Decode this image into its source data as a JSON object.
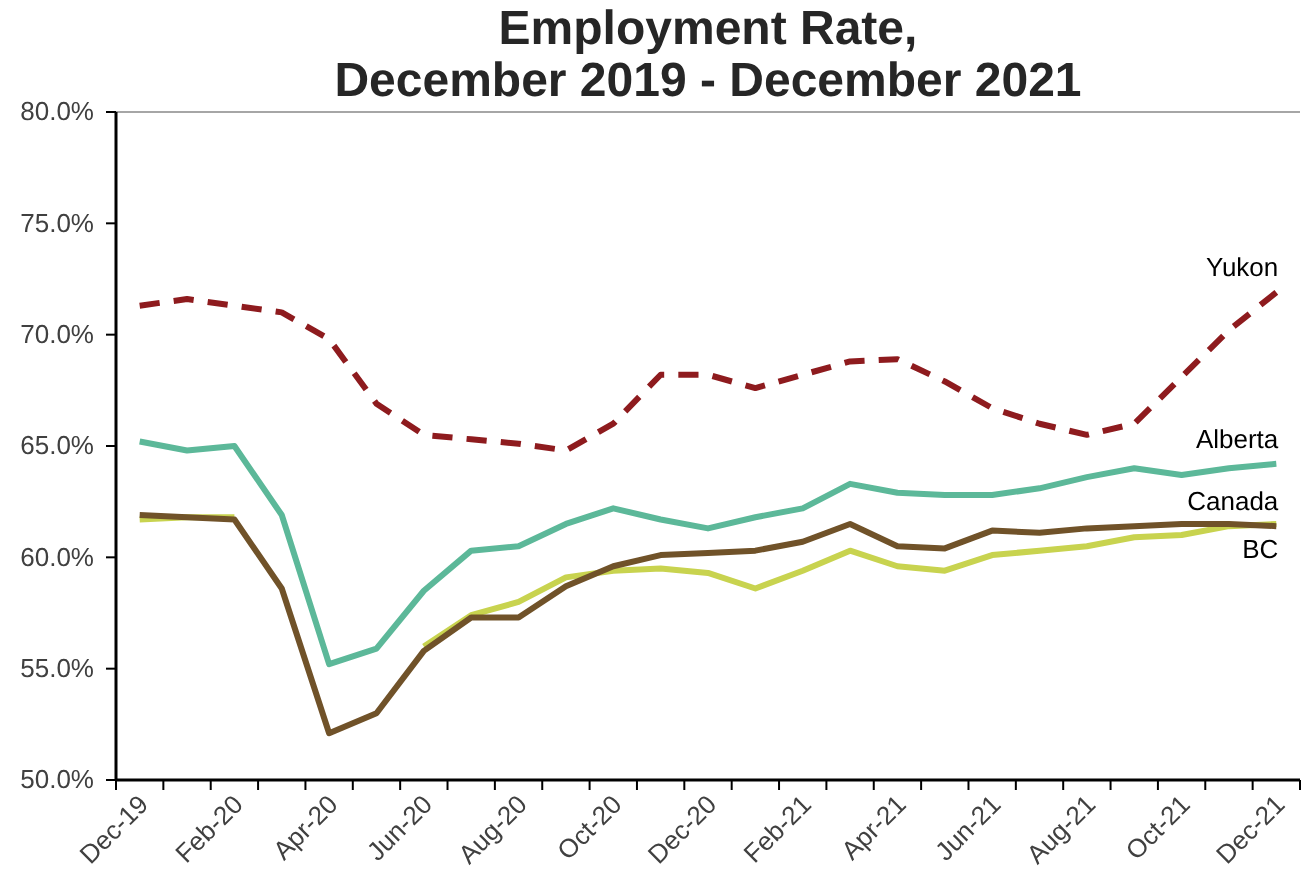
{
  "chart_data": {
    "type": "line",
    "title": "Employment Rate,\nDecember 2019 - December 2021",
    "categories": [
      "Dec-19",
      null,
      "Feb-20",
      null,
      "Apr-20",
      null,
      "Jun-20",
      null,
      "Aug-20",
      null,
      "Oct-20",
      null,
      "Dec-20",
      null,
      "Feb-21",
      null,
      "Apr-21",
      null,
      "Jun-21",
      null,
      "Aug-21",
      null,
      "Oct-21",
      null,
      "Dec-21"
    ],
    "series": [
      {
        "name": "Yukon",
        "color": "#8e1b1e",
        "line_style": "dashed",
        "values": [
          71.3,
          71.6,
          71.3,
          71.0,
          69.8,
          66.9,
          65.5,
          65.3,
          65.1,
          64.8,
          66.0,
          68.2,
          68.2,
          67.6,
          68.2,
          68.8,
          68.9,
          67.9,
          66.7,
          66.0,
          65.5,
          66.0,
          68.1,
          70.2,
          71.9
        ]
      },
      {
        "name": "Alberta",
        "color": "#5cb899",
        "line_style": "solid",
        "values": [
          65.2,
          64.8,
          65.0,
          61.9,
          55.2,
          55.9,
          58.5,
          60.3,
          60.5,
          61.5,
          62.2,
          61.7,
          61.3,
          61.8,
          62.2,
          63.3,
          62.9,
          62.8,
          62.8,
          63.1,
          63.6,
          64.0,
          63.7,
          64.0,
          64.2
        ]
      },
      {
        "name": "BC",
        "color": "#c8d34f",
        "line_style": "solid",
        "values": [
          61.7,
          61.8,
          61.8,
          null,
          null,
          null,
          56.0,
          57.4,
          58.0,
          59.1,
          59.4,
          59.5,
          59.3,
          58.6,
          59.4,
          60.3,
          59.6,
          59.4,
          60.1,
          60.3,
          60.5,
          60.9,
          61.0,
          61.4,
          61.5
        ]
      },
      {
        "name": "Canada",
        "color": "#705229",
        "line_style": "solid",
        "values": [
          61.9,
          61.8,
          61.7,
          58.6,
          52.1,
          53.0,
          55.8,
          57.3,
          57.3,
          58.7,
          59.6,
          60.1,
          60.2,
          60.3,
          60.7,
          61.5,
          60.5,
          60.4,
          61.2,
          61.1,
          61.3,
          61.4,
          61.5,
          61.5,
          61.4
        ]
      }
    ],
    "ylim": [
      50,
      80
    ],
    "yticks": [
      {
        "value": 50,
        "label": "50.0%"
      },
      {
        "value": 55,
        "label": "55.0%"
      },
      {
        "value": 60,
        "label": "60.0%"
      },
      {
        "value": 65,
        "label": "65.0%"
      },
      {
        "value": 70,
        "label": "70.0%"
      },
      {
        "value": 75,
        "label": "75.0%"
      },
      {
        "value": 80,
        "label": "80.0%"
      }
    ]
  }
}
